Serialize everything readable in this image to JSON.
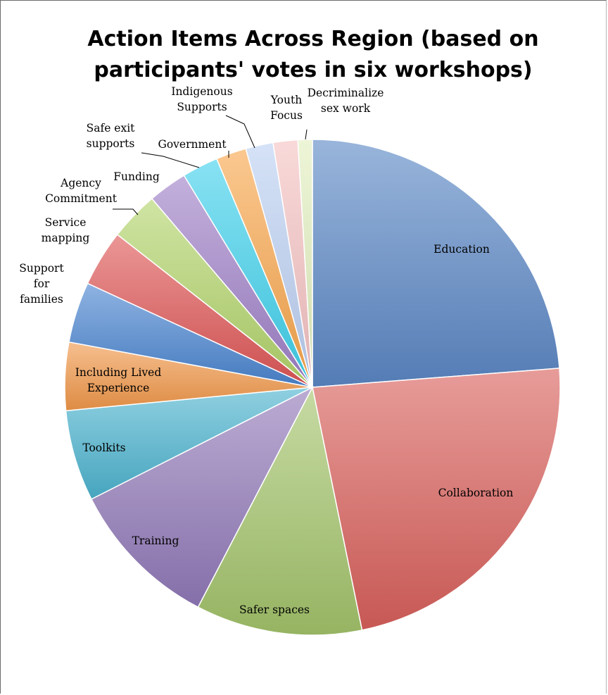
{
  "chart_data": {
    "type": "pie",
    "title_lines": [
      "Action Items Across Region (based on",
      "participants' votes in six workshops)"
    ],
    "start_angle_deg": 0,
    "direction": "clockwise",
    "slices": [
      {
        "label": "Education",
        "value": 25.2,
        "color": "#5b87c5",
        "label_lines": [
          "Education"
        ]
      },
      {
        "label": "Collaboration",
        "value": 24.4,
        "color": "#d8605b",
        "label_lines": [
          "Collaboration"
        ]
      },
      {
        "label": "Safer spaces",
        "value": 11.5,
        "color": "#a3c46a",
        "label_lines": [
          "Safer spaces"
        ]
      },
      {
        "label": "Training",
        "value": 10.5,
        "color": "#9179b8",
        "label_lines": [
          "Training"
        ]
      },
      {
        "label": "Toolkits",
        "value": 6.3,
        "color": "#4cb3cf",
        "label_lines": [
          "Toolkits"
        ]
      },
      {
        "label": "Including Lived Experience",
        "value": 4.7,
        "color": "#f1984a",
        "label_lines": [
          "Including Lived",
          "Experience"
        ]
      },
      {
        "label": "Support for families",
        "value": 4.2,
        "color": "#4a85d0",
        "label_lines": [
          "Support",
          "for",
          "families"
        ]
      },
      {
        "label": "Service mapping",
        "value": 3.9,
        "color": "#df5656",
        "label_lines": [
          "Service",
          "mapping"
        ]
      },
      {
        "label": "Agency Commitment",
        "value": 3.4,
        "color": "#b2d46a",
        "label_lines": [
          "Agency",
          "Commitment"
        ]
      },
      {
        "label": "Funding",
        "value": 2.7,
        "color": "#9f80c7",
        "label_lines": [
          "Funding"
        ]
      },
      {
        "label": "Safe exit supports",
        "value": 2.5,
        "color": "#3fd1ec",
        "label_lines": [
          "Safe exit",
          "supports"
        ]
      },
      {
        "label": "Government",
        "value": 2.1,
        "color": "#f8a64c",
        "label_lines": [
          "Government"
        ]
      },
      {
        "label": "Indigenous Supports",
        "value": 1.9,
        "color": "#bcd0f2",
        "label_lines": [
          "Indigenous",
          "Supports"
        ]
      },
      {
        "label": "Youth Focus",
        "value": 1.7,
        "color": "#f5c2c2",
        "label_lines": [
          "Youth",
          "Focus"
        ]
      },
      {
        "label": "Decriminalize sex work",
        "value": 1.0,
        "color": "#e2efbe",
        "label_lines": [
          "Decriminalize",
          "sex work"
        ]
      }
    ],
    "legend": "none"
  }
}
